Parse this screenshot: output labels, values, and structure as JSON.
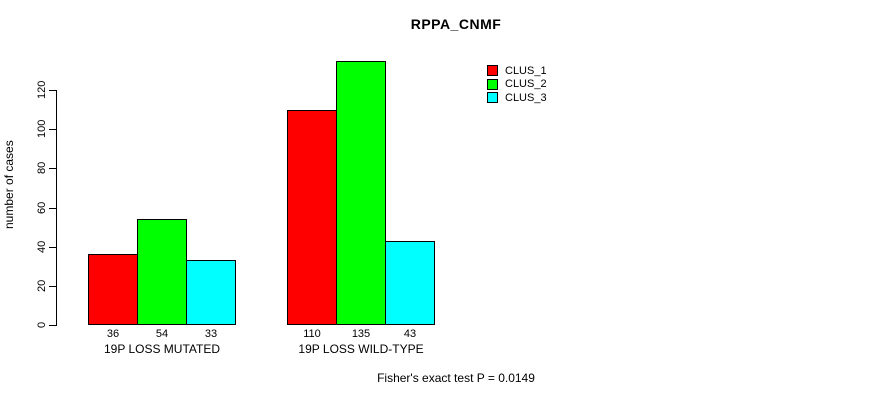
{
  "chart_data": {
    "type": "bar",
    "title": "RPPA_CNMF",
    "ylabel": "number of cases",
    "footnote": "Fisher's exact test P = 0.0149",
    "categories": [
      "19P LOSS MUTATED",
      "19P LOSS WILD-TYPE"
    ],
    "series": [
      {
        "name": "CLUS_1",
        "color": "#FF0000",
        "values": [
          36,
          110
        ]
      },
      {
        "name": "CLUS_2",
        "color": "#00FF00",
        "values": [
          54,
          135
        ]
      },
      {
        "name": "CLUS_3",
        "color": "#00FFFF",
        "values": [
          33,
          43
        ]
      }
    ],
    "y_ticks": [
      0,
      20,
      40,
      60,
      80,
      100,
      120
    ],
    "ylim": [
      0,
      135
    ],
    "bar_value_labels": [
      [
        "36",
        "54",
        "33"
      ],
      [
        "110",
        "135",
        "43"
      ]
    ],
    "legend_position": "top-right",
    "grid": false,
    "bar_border_color": "#000000",
    "background_color": "#FFFFFF"
  }
}
